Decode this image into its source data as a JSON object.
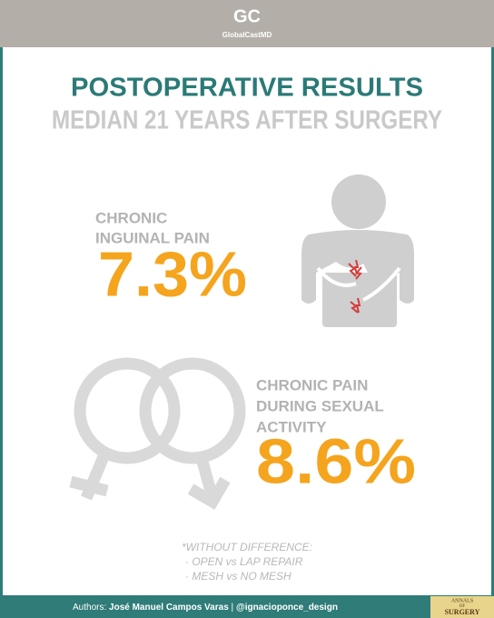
{
  "header": {
    "logo": "GC",
    "brand": "GlobalCastMD"
  },
  "title": "POSTOPERATIVE RESULTS",
  "subtitle": "MEDIAN 21 YEARS AFTER SURGERY",
  "stats": [
    {
      "label_lines": [
        "CHRONIC",
        "INGUINAL PAIN"
      ],
      "value": "7.3%"
    },
    {
      "label_lines": [
        "CHRONIC PAIN",
        "DURING SEXUAL",
        "ACTIVITY"
      ],
      "value": "8.6%"
    }
  ],
  "footnote": {
    "heading": "*WITHOUT DIFFERENCE:",
    "items": [
      "· OPEN vs LAP REPAIR",
      "· MESH vs NO MESH"
    ]
  },
  "footer": {
    "authors_label": "Authors:",
    "authors": "José Manuel Campos Varas",
    "separator": "|",
    "designer": "@ignacioponce_design"
  },
  "journal": {
    "line1": "ANNALS",
    "line2": "OF",
    "line3": "SURGERY"
  }
}
